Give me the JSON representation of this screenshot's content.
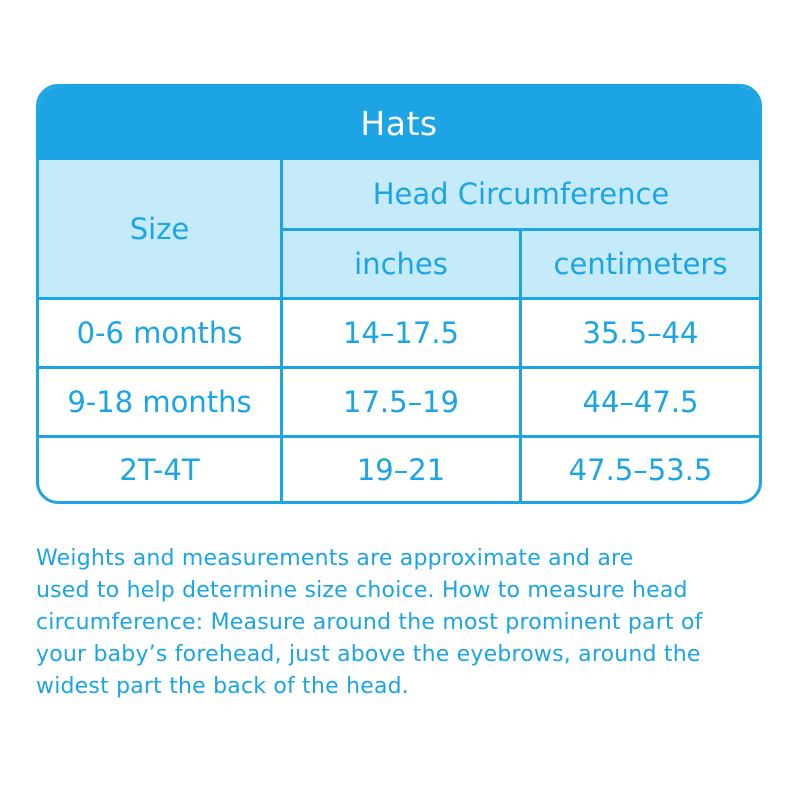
{
  "table": {
    "title": "Hats",
    "header": {
      "size": "Size",
      "group": "Head Circumference",
      "inches": "inches",
      "centimeters": "centimeters"
    },
    "rows": [
      {
        "size": "0-6 months",
        "inches": "14–17.5",
        "centimeters": "35.5–44"
      },
      {
        "size": "9-18 months",
        "inches": "17.5–19",
        "centimeters": "44–47.5"
      },
      {
        "size": "2T-4T",
        "inches": "19–21",
        "centimeters": "47.5–53.5"
      }
    ]
  },
  "note": {
    "lines": [
      "Weights and measurements are approximate and are",
      "used to help determine size choice. How to measure head",
      "circumference: Measure around the most prominent part of",
      "your baby’s forehead, just above the eyebrows, around the",
      "widest part the back of the head."
    ]
  },
  "colors": {
    "accent": "#1ca4e4",
    "header_fill": "#c5ebfb",
    "background": "#ffffff"
  }
}
